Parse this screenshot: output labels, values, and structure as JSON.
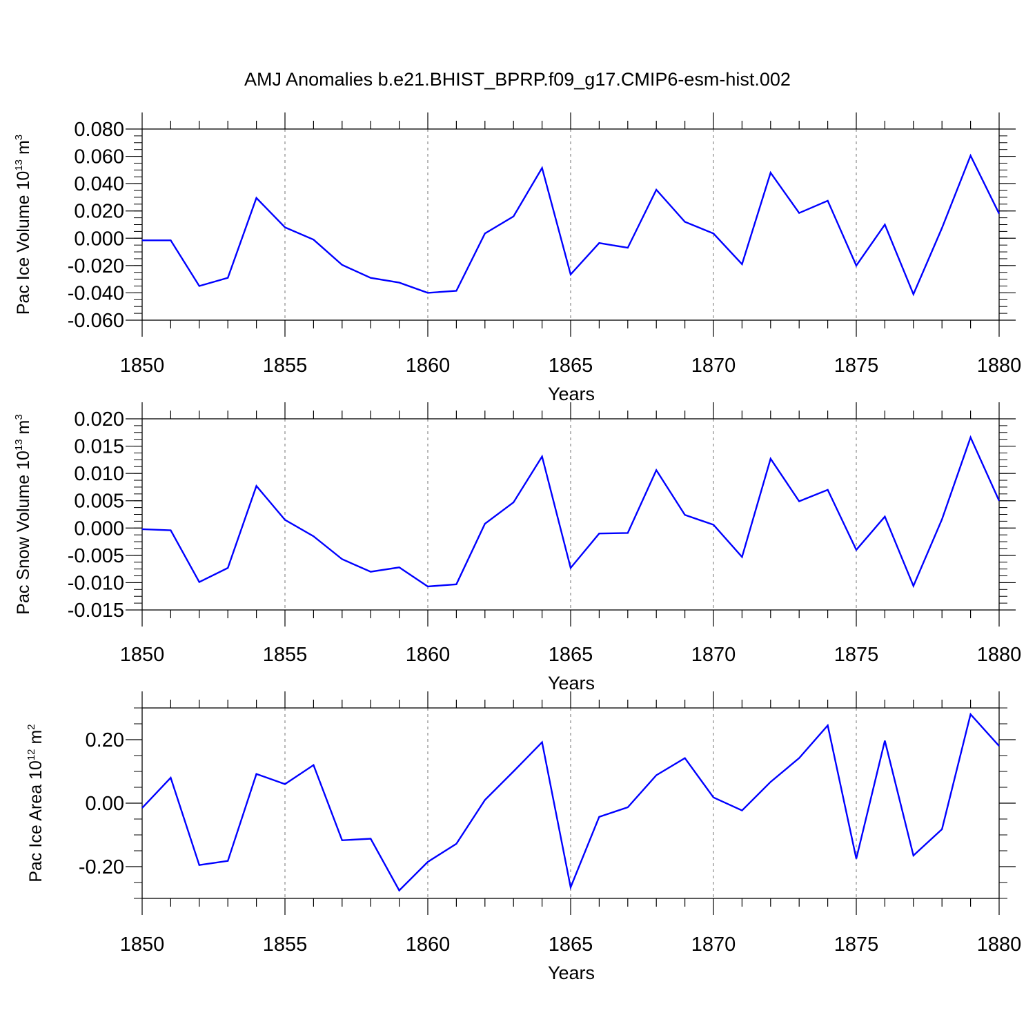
{
  "title": "AMJ Anomalies b.e21.BHIST_BPRP.f09_g17.CMIP6-esm-hist.002",
  "line_color": "#0000ff",
  "chart_data": [
    {
      "type": "line",
      "ylabel": {
        "text": "Pac Ice Volume 10",
        "exp": "13",
        "unit": " m",
        "unit_exp": "3"
      },
      "xlabel": "Years",
      "xlim": [
        1850,
        1880
      ],
      "ylim": [
        -0.06,
        0.08
      ],
      "xticks": [
        "1850",
        "1855",
        "1860",
        "1865",
        "1870",
        "1875",
        "1880"
      ],
      "yticks": [
        "0.080",
        "0.060",
        "0.040",
        "0.020",
        "0.000",
        "-0.020",
        "-0.040",
        "-0.060"
      ],
      "grid": "dashed vertical at 1855, 1860, 1865, 1870, 1875",
      "x": [
        1850,
        1851,
        1852,
        1853,
        1854,
        1855,
        1856,
        1857,
        1858,
        1859,
        1860,
        1861,
        1862,
        1863,
        1864,
        1865,
        1866,
        1867,
        1868,
        1869,
        1870,
        1871,
        1872,
        1873,
        1874,
        1875,
        1876,
        1877,
        1878,
        1879,
        1880
      ],
      "values": [
        -0.0015,
        -0.0015,
        -0.035,
        -0.029,
        0.0295,
        0.008,
        -0.001,
        -0.0195,
        -0.029,
        -0.0325,
        -0.04,
        -0.0385,
        0.0035,
        0.016,
        0.0515,
        -0.0265,
        -0.0035,
        -0.007,
        0.0355,
        0.012,
        0.0035,
        -0.019,
        0.048,
        0.0185,
        0.0275,
        -0.02,
        0.01,
        -0.041,
        0.0075,
        0.0605,
        0.018
      ]
    },
    {
      "type": "line",
      "ylabel": {
        "text": "Pac Snow Volume 10",
        "exp": "13",
        "unit": " m",
        "unit_exp": "3"
      },
      "xlabel": "Years",
      "xlim": [
        1850,
        1880
      ],
      "ylim": [
        -0.015,
        0.02
      ],
      "xticks": [
        "1850",
        "1855",
        "1860",
        "1865",
        "1870",
        "1875",
        "1880"
      ],
      "yticks": [
        "0.020",
        "0.015",
        "0.010",
        "0.005",
        "0.000",
        "-0.005",
        "-0.010",
        "-0.015"
      ],
      "grid": "dashed vertical at 1855, 1860, 1865, 1870, 1875",
      "x": [
        1850,
        1851,
        1852,
        1853,
        1854,
        1855,
        1856,
        1857,
        1858,
        1859,
        1860,
        1861,
        1862,
        1863,
        1864,
        1865,
        1866,
        1867,
        1868,
        1869,
        1870,
        1871,
        1872,
        1873,
        1874,
        1875,
        1876,
        1877,
        1878,
        1879,
        1880
      ],
      "values": [
        -0.0002,
        -0.0004,
        -0.0099,
        -0.0073,
        0.0077,
        0.0015,
        -0.0015,
        -0.0057,
        -0.008,
        -0.0072,
        -0.0107,
        -0.0103,
        0.0008,
        0.0047,
        0.0131,
        -0.0073,
        -0.001,
        -0.0009,
        0.0106,
        0.0024,
        0.0006,
        -0.0053,
        0.0127,
        0.0049,
        0.007,
        -0.004,
        0.0021,
        -0.0106,
        0.0016,
        0.0166,
        0.005
      ]
    },
    {
      "type": "line",
      "ylabel": {
        "text": "Pac Ice Area 10",
        "exp": "12",
        "unit": " m",
        "unit_exp": "2"
      },
      "xlabel": "Years",
      "xlim": [
        1850,
        1880
      ],
      "ylim": [
        -0.3,
        0.3
      ],
      "xticks": [
        "1850",
        "1855",
        "1860",
        "1865",
        "1870",
        "1875",
        "1880"
      ],
      "yticks": [
        "0.20",
        "0.00",
        "-0.20"
      ],
      "grid": "dashed vertical at 1855, 1860, 1865, 1870, 1875",
      "x": [
        1850,
        1851,
        1852,
        1853,
        1854,
        1855,
        1856,
        1857,
        1858,
        1859,
        1860,
        1861,
        1862,
        1863,
        1864,
        1865,
        1866,
        1867,
        1868,
        1869,
        1870,
        1871,
        1872,
        1873,
        1874,
        1875,
        1876,
        1877,
        1878,
        1879,
        1880
      ],
      "values": [
        -0.015,
        0.08,
        -0.195,
        -0.182,
        0.092,
        0.06,
        0.12,
        -0.117,
        -0.112,
        -0.275,
        -0.185,
        -0.128,
        0.01,
        0.1,
        0.192,
        -0.265,
        -0.043,
        -0.013,
        0.088,
        0.142,
        0.018,
        -0.023,
        0.067,
        0.142,
        0.245,
        -0.175,
        0.197,
        -0.165,
        -0.082,
        0.28,
        0.18
      ]
    }
  ]
}
